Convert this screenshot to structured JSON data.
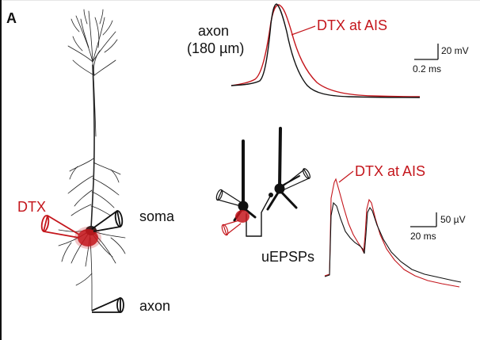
{
  "panel_label": "A",
  "labels": {
    "dtx": "DTX",
    "soma": "soma",
    "axon": "axon",
    "axon_recording_line1": "axon",
    "axon_recording_line2": "(180 µm)",
    "dtx_at_ais_top": "DTX at AIS",
    "dtx_at_ais_bottom": "DTX at AIS",
    "uepsps": "uEPSPs"
  },
  "scale_bars": {
    "top_vertical": "20 mV",
    "top_horizontal": "0.2 ms",
    "bottom_vertical": "50 µV",
    "bottom_horizontal": "20 ms"
  },
  "colors": {
    "control": "#111111",
    "dtx": "#c4161c",
    "neuron": "#222222"
  },
  "icons": {
    "pipette": "recording-pipette-icon",
    "neuron": "pyramidal-neuron-icon"
  }
}
